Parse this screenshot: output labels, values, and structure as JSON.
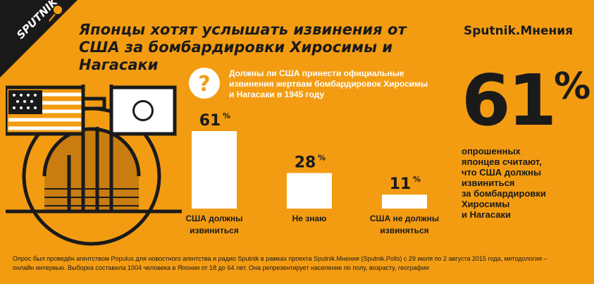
{
  "logo": {
    "text": "SPUTNIK",
    "icon": "sputnik-logo-icon"
  },
  "header": {
    "title_lines": [
      "Японцы хотят услышать извинения от",
      "США за бомбардировки Хиросимы и Нагасаки"
    ],
    "brand": "Sputnik.Мнения"
  },
  "question": {
    "icon": "question-mark-icon",
    "lines": [
      "Должны ли США принести официальные",
      "извинения жертвам бомбардировок Хиросимы",
      "и Нагасаки в 1945 году"
    ]
  },
  "highlight": {
    "value": "61",
    "unit": "%",
    "summary_lines": [
      "опрошенных",
      "японцев считают,",
      "что США должны",
      "извиниться",
      "за бомбардировки",
      "Хиросимы",
      "и Нагасаки"
    ]
  },
  "chart_data": {
    "type": "bar",
    "categories": [
      [
        "США должны",
        "извиниться"
      ],
      [
        "Не знаю"
      ],
      [
        "США не должны",
        "извиняться"
      ]
    ],
    "values": [
      61,
      28,
      11
    ],
    "value_labels": [
      "61",
      "28",
      "11"
    ],
    "value_unit": "%",
    "bar_color": "#ffffff",
    "title": "",
    "xlabel": "",
    "ylabel": "",
    "ylim": [
      0,
      61
    ],
    "grid": false
  },
  "footnote": {
    "lines": [
      "Опрос был проведён агентством Populus для новостного агентства и радио Sputnik в рамках проекта Sputnik.Мнения (Sputnik.Polls) с 29 июля по 2 августа 2015 года, методология –",
      "онлайн интервью. Выборка составила 1004 человека в Японии от 18 до 64 лет. Она репрезентирует население по полу, возрасту, географии"
    ]
  },
  "colors": {
    "background": "#f39c12",
    "dark": "#1a1a1a",
    "white": "#ffffff"
  }
}
